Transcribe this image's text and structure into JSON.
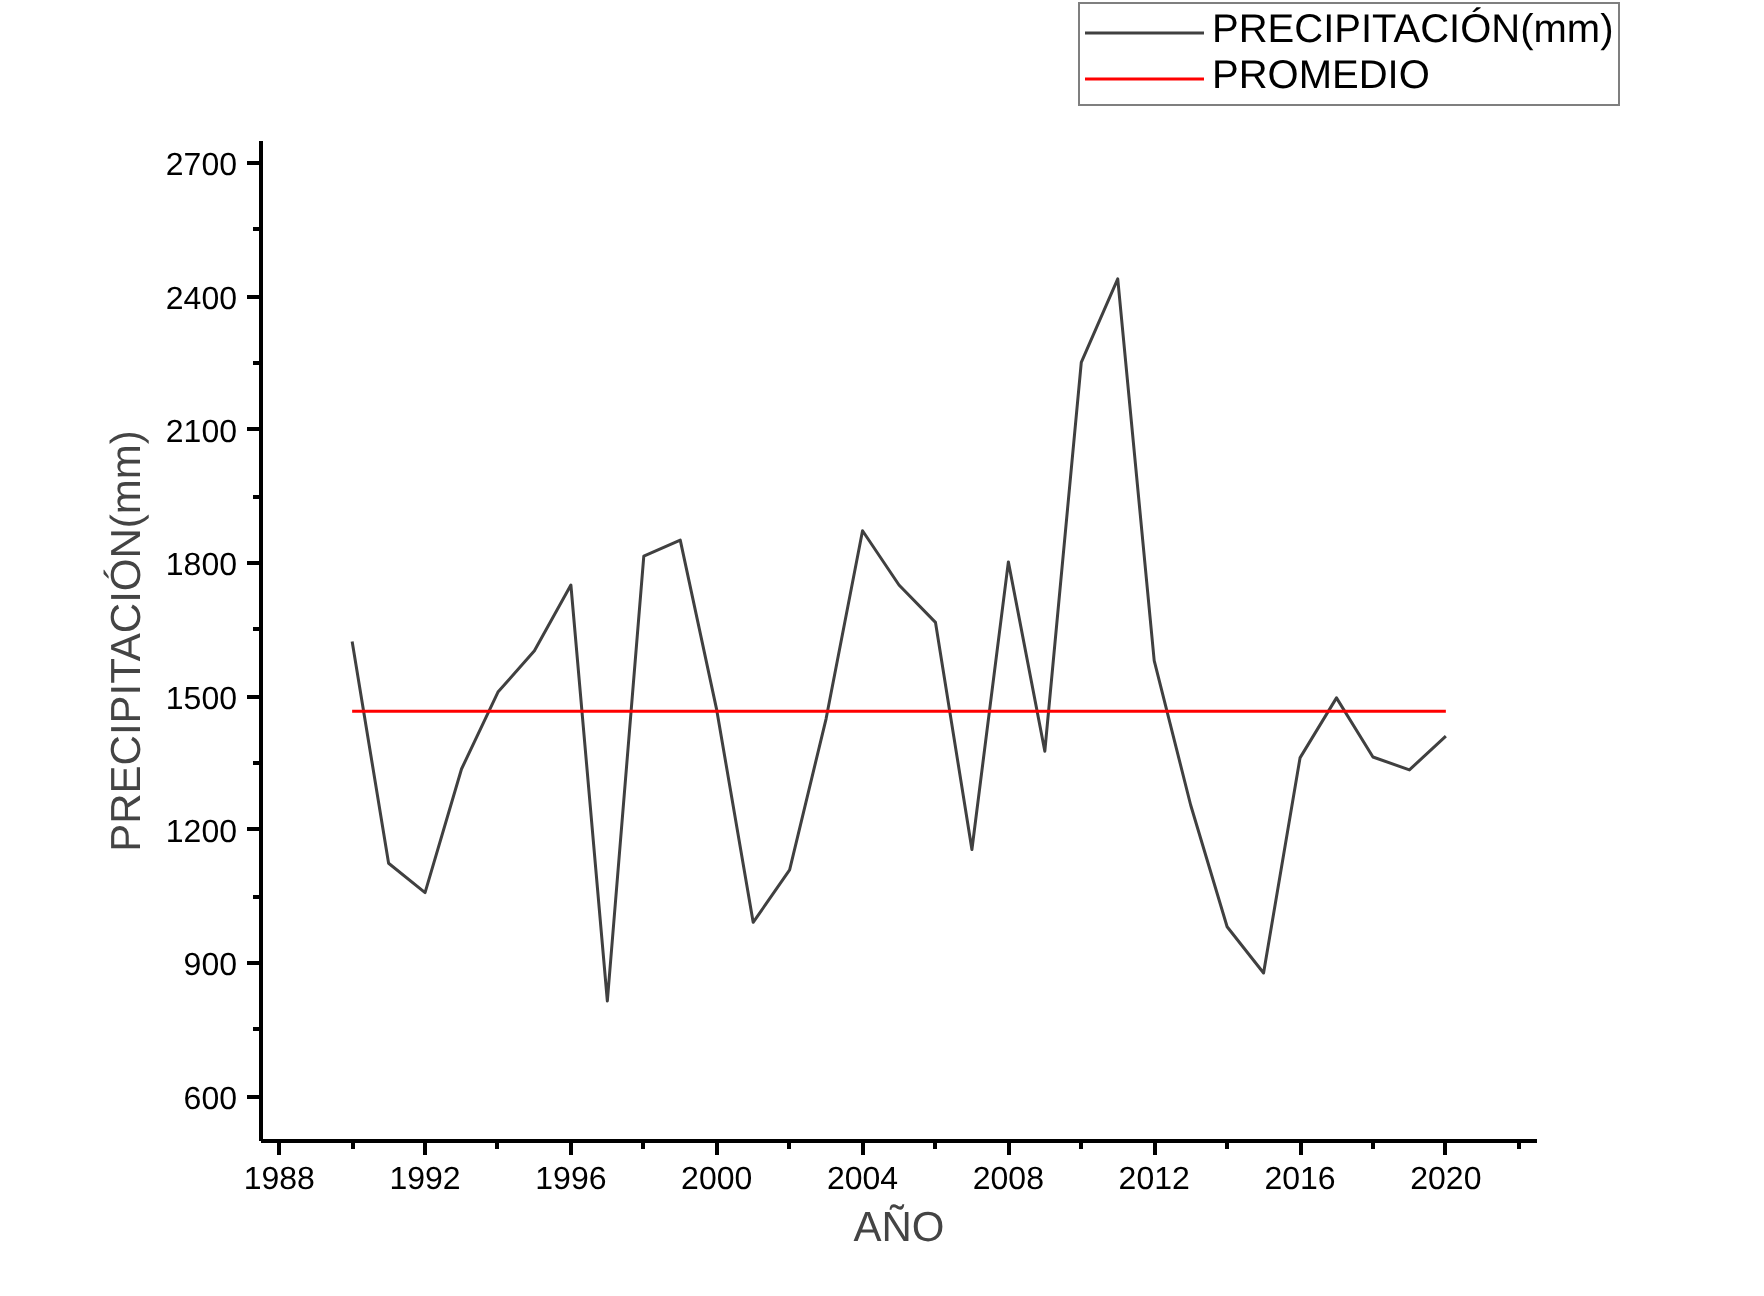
{
  "chart_data": {
    "type": "line",
    "xlabel": "AÑO",
    "ylabel": "PRECIPITACIÓN(mm)",
    "x": [
      1990,
      1991,
      1992,
      1993,
      1994,
      1995,
      1996,
      1997,
      1998,
      1999,
      2000,
      2001,
      2002,
      2003,
      2004,
      2005,
      2006,
      2007,
      2008,
      2009,
      2010,
      2011,
      2012,
      2013,
      2014,
      2015,
      2016,
      2017,
      2018,
      2019,
      2020
    ],
    "series": [
      {
        "name": "PRECIPITACIÓN(mm)",
        "color": "#404040",
        "values": [
          1624,
          1125,
          1059,
          1337,
          1510,
          1603,
          1751,
          815,
          1816,
          1852,
          1470,
          992,
          1110,
          1450,
          1873,
          1751,
          1667,
          1156,
          1803,
          1377,
          2252,
          2440,
          1581,
          1256,
          982,
          878,
          1362,
          1497,
          1364,
          1335,
          1411
        ]
      },
      {
        "name": "PROMEDIO",
        "color": "#ff0000",
        "x": [
          1990,
          2020
        ],
        "values": [
          1467,
          1467
        ]
      }
    ],
    "xlim": [
      1987.5,
      2022.5
    ],
    "xticks": [
      1988,
      {
        "value": 1990,
        "label": null
      },
      1992,
      {
        "value": 1994,
        "label": null
      },
      1996,
      {
        "value": 1998,
        "label": null
      },
      2000,
      {
        "value": 2002,
        "label": null
      },
      2004,
      {
        "value": 2006,
        "label": null
      },
      2008,
      {
        "value": 2010,
        "label": null
      },
      2012,
      {
        "value": 2014,
        "label": null
      },
      2016,
      {
        "value": 2018,
        "label": null
      },
      2020,
      {
        "value": 2022,
        "label": null
      }
    ],
    "ylim": [
      500,
      2750
    ],
    "yticks": [
      600,
      {
        "value": 750,
        "label": null
      },
      900,
      {
        "value": 1050,
        "label": null
      },
      1200,
      {
        "value": 1350,
        "label": null
      },
      1500,
      {
        "value": 1650,
        "label": null
      },
      1800,
      {
        "value": 1950,
        "label": null
      },
      2100,
      {
        "value": 2250,
        "label": null
      },
      2400,
      {
        "value": 2550,
        "label": null
      },
      2700
    ],
    "grid": false,
    "legend": "top right",
    "marker": "none",
    "line_style": "solid"
  }
}
